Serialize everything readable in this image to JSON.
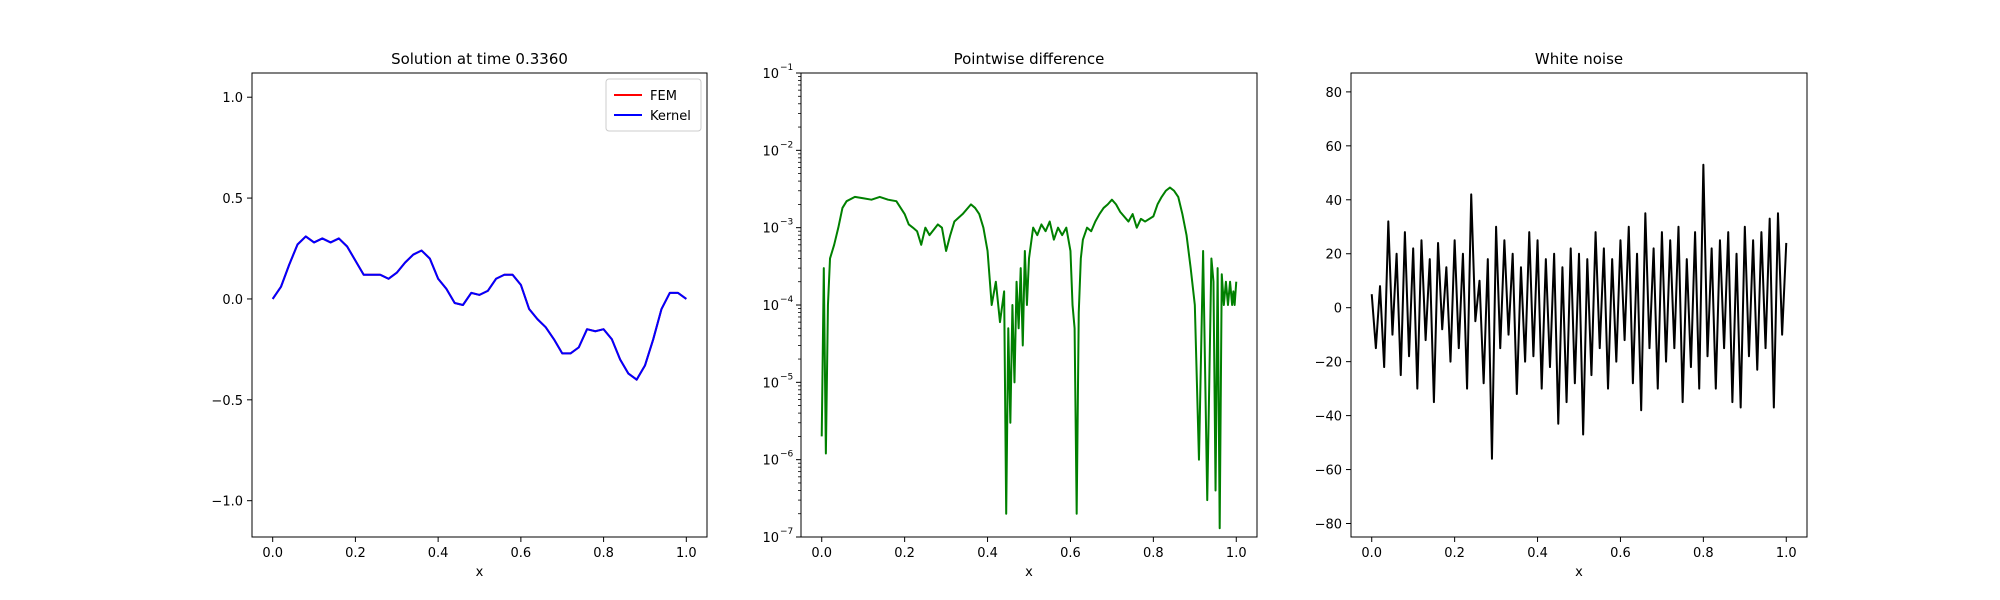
{
  "chart_data": [
    {
      "type": "line",
      "title": "Solution at time 0.3360",
      "xlabel": "x",
      "ylabel": "",
      "xlim": [
        -0.05,
        1.05
      ],
      "ylim": [
        -1.18,
        1.12
      ],
      "xticks": [
        0.0,
        0.2,
        0.4,
        0.6,
        0.8,
        1.0
      ],
      "xtick_labels": [
        "0.0",
        "0.2",
        "0.4",
        "0.6",
        "0.8",
        "1.0"
      ],
      "yticks": [
        1.0,
        0.5,
        0.0,
        -0.5,
        -1.0
      ],
      "ytick_labels": [
        "1.0",
        "0.5",
        "0.0",
        "−0.5",
        "−1.0"
      ],
      "legend_position": "top-right",
      "grid": false,
      "series": [
        {
          "name": "FEM",
          "color": "#ff0000",
          "x": [
            0.0,
            0.02,
            0.04,
            0.06,
            0.08,
            0.1,
            0.12,
            0.14,
            0.16,
            0.18,
            0.2,
            0.22,
            0.24,
            0.26,
            0.28,
            0.3,
            0.32,
            0.34,
            0.36,
            0.38,
            0.4,
            0.42,
            0.44,
            0.46,
            0.48,
            0.5,
            0.52,
            0.54,
            0.56,
            0.58,
            0.6,
            0.62,
            0.64,
            0.66,
            0.68,
            0.7,
            0.72,
            0.74,
            0.76,
            0.78,
            0.8,
            0.82,
            0.84,
            0.86,
            0.88,
            0.9,
            0.92,
            0.94,
            0.96,
            0.98,
            1.0
          ],
          "y": [
            0.0,
            0.06,
            0.17,
            0.27,
            0.31,
            0.28,
            0.3,
            0.28,
            0.3,
            0.26,
            0.19,
            0.12,
            0.12,
            0.12,
            0.1,
            0.13,
            0.18,
            0.22,
            0.24,
            0.2,
            0.1,
            0.05,
            -0.02,
            -0.03,
            0.03,
            0.02,
            0.04,
            0.1,
            0.12,
            0.12,
            0.07,
            -0.05,
            -0.1,
            -0.14,
            -0.2,
            -0.27,
            -0.27,
            -0.24,
            -0.15,
            -0.16,
            -0.15,
            -0.2,
            -0.3,
            -0.37,
            -0.4,
            -0.33,
            -0.2,
            -0.05,
            0.03,
            0.03,
            0.0
          ]
        },
        {
          "name": "Kernel",
          "color": "#0000ff",
          "x": [
            0.0,
            0.02,
            0.04,
            0.06,
            0.08,
            0.1,
            0.12,
            0.14,
            0.16,
            0.18,
            0.2,
            0.22,
            0.24,
            0.26,
            0.28,
            0.3,
            0.32,
            0.34,
            0.36,
            0.38,
            0.4,
            0.42,
            0.44,
            0.46,
            0.48,
            0.5,
            0.52,
            0.54,
            0.56,
            0.58,
            0.6,
            0.62,
            0.64,
            0.66,
            0.68,
            0.7,
            0.72,
            0.74,
            0.76,
            0.78,
            0.8,
            0.82,
            0.84,
            0.86,
            0.88,
            0.9,
            0.92,
            0.94,
            0.96,
            0.98,
            1.0
          ],
          "y": [
            0.0,
            0.06,
            0.17,
            0.27,
            0.31,
            0.28,
            0.3,
            0.28,
            0.3,
            0.26,
            0.19,
            0.12,
            0.12,
            0.12,
            0.1,
            0.13,
            0.18,
            0.22,
            0.24,
            0.2,
            0.1,
            0.05,
            -0.02,
            -0.03,
            0.03,
            0.02,
            0.04,
            0.1,
            0.12,
            0.12,
            0.07,
            -0.05,
            -0.1,
            -0.14,
            -0.2,
            -0.27,
            -0.27,
            -0.24,
            -0.15,
            -0.16,
            -0.15,
            -0.2,
            -0.3,
            -0.37,
            -0.4,
            -0.33,
            -0.2,
            -0.05,
            0.03,
            0.03,
            0.0
          ]
        }
      ]
    },
    {
      "type": "line",
      "title": "Pointwise difference",
      "xlabel": "x",
      "ylabel": "",
      "yscale": "log",
      "xlim": [
        -0.05,
        1.05
      ],
      "ylim": [
        1e-07,
        0.1
      ],
      "xticks": [
        0.0,
        0.2,
        0.4,
        0.6,
        0.8,
        1.0
      ],
      "xtick_labels": [
        "0.0",
        "0.2",
        "0.4",
        "0.6",
        "0.8",
        "1.0"
      ],
      "yticks": [
        0.1,
        0.01,
        0.001,
        0.0001,
        1e-05,
        1e-06,
        1e-07
      ],
      "ytick_labels": [
        "10",
        "10",
        "10",
        "10",
        "10",
        "10",
        "10"
      ],
      "ytick_exponents": [
        "−1",
        "−2",
        "−3",
        "−4",
        "−5",
        "−6",
        "−7"
      ],
      "grid": false,
      "series": [
        {
          "color": "#008000",
          "x": [
            0.0,
            0.005,
            0.01,
            0.015,
            0.02,
            0.03,
            0.04,
            0.05,
            0.06,
            0.08,
            0.1,
            0.12,
            0.14,
            0.16,
            0.18,
            0.2,
            0.21,
            0.22,
            0.23,
            0.24,
            0.25,
            0.26,
            0.28,
            0.29,
            0.3,
            0.31,
            0.32,
            0.34,
            0.36,
            0.37,
            0.38,
            0.39,
            0.4,
            0.41,
            0.42,
            0.43,
            0.44,
            0.445,
            0.45,
            0.455,
            0.46,
            0.465,
            0.47,
            0.475,
            0.48,
            0.485,
            0.49,
            0.495,
            0.5,
            0.51,
            0.52,
            0.53,
            0.54,
            0.55,
            0.56,
            0.57,
            0.58,
            0.59,
            0.6,
            0.605,
            0.61,
            0.615,
            0.62,
            0.625,
            0.63,
            0.64,
            0.65,
            0.66,
            0.67,
            0.68,
            0.69,
            0.7,
            0.71,
            0.72,
            0.74,
            0.75,
            0.76,
            0.77,
            0.78,
            0.8,
            0.81,
            0.82,
            0.83,
            0.84,
            0.85,
            0.86,
            0.87,
            0.88,
            0.89,
            0.9,
            0.91,
            0.92,
            0.93,
            0.94,
            0.945,
            0.95,
            0.955,
            0.96,
            0.965,
            0.97,
            0.975,
            0.98,
            0.985,
            0.99,
            0.993,
            0.996,
            1.0
          ],
          "y": [
            2e-06,
            0.0003,
            1.2e-06,
            0.0001,
            0.0004,
            0.0006,
            0.001,
            0.0018,
            0.0022,
            0.0025,
            0.0024,
            0.0023,
            0.0025,
            0.0023,
            0.0022,
            0.0015,
            0.0011,
            0.001,
            0.0009,
            0.0006,
            0.001,
            0.0008,
            0.0011,
            0.001,
            0.0005,
            0.0008,
            0.0012,
            0.0015,
            0.002,
            0.0018,
            0.0015,
            0.001,
            0.0005,
            0.0001,
            0.0002,
            6e-05,
            0.00015,
            2e-07,
            5e-05,
            3e-06,
            0.0001,
            1e-05,
            0.0002,
            5e-05,
            0.0003,
            3e-05,
            0.0005,
            0.0001,
            0.0004,
            0.001,
            0.0008,
            0.0011,
            0.0009,
            0.0012,
            0.0007,
            0.001,
            0.0008,
            0.001,
            0.0005,
            0.0001,
            5e-05,
            2e-07,
            8e-05,
            0.0004,
            0.0007,
            0.001,
            0.0009,
            0.0012,
            0.0015,
            0.0018,
            0.002,
            0.0023,
            0.002,
            0.0016,
            0.0012,
            0.0015,
            0.001,
            0.0013,
            0.0012,
            0.0014,
            0.002,
            0.0025,
            0.003,
            0.0033,
            0.003,
            0.0025,
            0.0015,
            0.0008,
            0.0003,
            0.0001,
            1e-06,
            0.0005,
            3e-07,
            0.0004,
            0.0002,
            4e-07,
            0.0003,
            1.3e-07,
            0.00025,
            0.0001,
            0.0002,
            0.0001,
            0.0002,
            0.0001,
            0.00015,
            0.0001,
            0.0002
          ]
        }
      ]
    },
    {
      "type": "line",
      "title": "White noise",
      "xlabel": "x",
      "ylabel": "",
      "xlim": [
        -0.05,
        1.05
      ],
      "ylim": [
        -85,
        87
      ],
      "xticks": [
        0.0,
        0.2,
        0.4,
        0.6,
        0.8,
        1.0
      ],
      "xtick_labels": [
        "0.0",
        "0.2",
        "0.4",
        "0.6",
        "0.8",
        "1.0"
      ],
      "yticks": [
        80,
        60,
        40,
        20,
        0,
        -20,
        -40,
        -60,
        -80
      ],
      "ytick_labels": [
        "80",
        "60",
        "40",
        "20",
        "0",
        "−20",
        "−40",
        "−60",
        "−80"
      ],
      "grid": false,
      "series": [
        {
          "color": "#000000",
          "x": [
            0.0,
            0.01,
            0.02,
            0.03,
            0.04,
            0.05,
            0.06,
            0.07,
            0.08,
            0.09,
            0.1,
            0.11,
            0.12,
            0.13,
            0.14,
            0.15,
            0.16,
            0.17,
            0.18,
            0.19,
            0.2,
            0.21,
            0.22,
            0.23,
            0.24,
            0.25,
            0.26,
            0.27,
            0.28,
            0.29,
            0.3,
            0.31,
            0.32,
            0.33,
            0.34,
            0.35,
            0.36,
            0.37,
            0.38,
            0.39,
            0.4,
            0.41,
            0.42,
            0.43,
            0.44,
            0.45,
            0.46,
            0.47,
            0.48,
            0.49,
            0.5,
            0.51,
            0.52,
            0.53,
            0.54,
            0.55,
            0.56,
            0.57,
            0.58,
            0.59,
            0.6,
            0.61,
            0.62,
            0.63,
            0.64,
            0.65,
            0.66,
            0.67,
            0.68,
            0.69,
            0.7,
            0.71,
            0.72,
            0.73,
            0.74,
            0.75,
            0.76,
            0.77,
            0.78,
            0.79,
            0.8,
            0.81,
            0.82,
            0.83,
            0.84,
            0.85,
            0.86,
            0.87,
            0.88,
            0.89,
            0.9,
            0.91,
            0.92,
            0.93,
            0.94,
            0.95,
            0.96,
            0.97,
            0.98,
            0.99,
            1.0
          ],
          "y": [
            5,
            -15,
            8,
            -22,
            32,
            -10,
            20,
            -25,
            28,
            -18,
            22,
            -30,
            25,
            -12,
            18,
            -35,
            24,
            -8,
            15,
            -20,
            25,
            -15,
            20,
            -30,
            42,
            -5,
            10,
            -28,
            18,
            -56,
            30,
            -15,
            25,
            -10,
            20,
            -32,
            15,
            -20,
            28,
            -18,
            25,
            -30,
            18,
            -22,
            20,
            -43,
            15,
            -35,
            22,
            -28,
            20,
            -47,
            18,
            -25,
            28,
            -15,
            22,
            -30,
            18,
            -20,
            25,
            -12,
            30,
            -28,
            20,
            -38,
            35,
            -15,
            22,
            -30,
            28,
            -20,
            25,
            -15,
            30,
            -35,
            18,
            -22,
            28,
            -30,
            53,
            -18,
            22,
            -30,
            25,
            -15,
            28,
            -35,
            20,
            -37,
            30,
            -18,
            25,
            -23,
            28,
            -15,
            33,
            -37,
            35,
            -10,
            24
          ]
        }
      ]
    }
  ]
}
